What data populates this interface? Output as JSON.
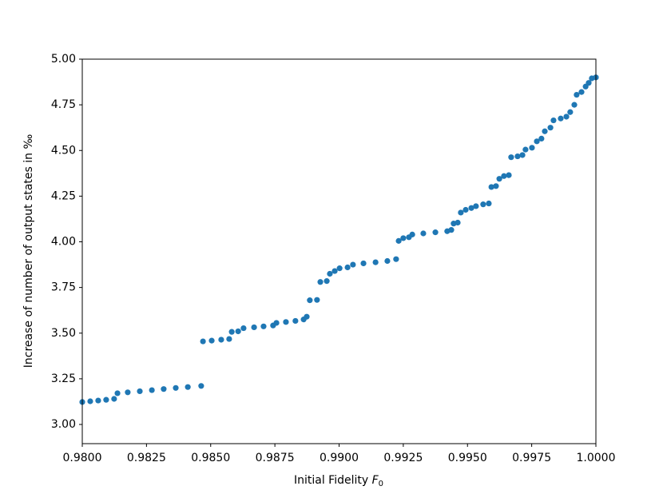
{
  "chart_data": {
    "type": "scatter",
    "xlabel": {
      "text": "Initial Fidelity",
      "symbol": "F",
      "subscript": "0"
    },
    "ylabel": "Increase of number of output states in ‰",
    "series": [
      {
        "color": "#1f77b4",
        "x": [
          0.98,
          0.98031,
          0.98062,
          0.98093,
          0.98124,
          0.98137,
          0.98177,
          0.98224,
          0.98271,
          0.98317,
          0.98364,
          0.98411,
          0.98463,
          0.9847,
          0.98504,
          0.98541,
          0.98572,
          0.98582,
          0.98607,
          0.98628,
          0.98669,
          0.98706,
          0.98743,
          0.98756,
          0.98793,
          0.9883,
          0.98862,
          0.98874,
          0.98886,
          0.98914,
          0.98927,
          0.98952,
          0.98964,
          0.98983,
          0.99002,
          0.99033,
          0.99054,
          0.99095,
          0.99142,
          0.99188,
          0.99222,
          0.99232,
          0.9925,
          0.99272,
          0.99285,
          0.99328,
          0.99375,
          0.99421,
          0.99437,
          0.99446,
          0.99462,
          0.99474,
          0.99493,
          0.99515,
          0.99533,
          0.99561,
          0.99583,
          0.99593,
          0.99611,
          0.99624,
          0.99642,
          0.99661,
          0.9967,
          0.99695,
          0.99714,
          0.99726,
          0.99751,
          0.9977,
          0.99788,
          0.99801,
          0.99823,
          0.99835,
          0.99863,
          0.99885,
          0.999,
          0.99916,
          0.99925,
          0.99944,
          0.9996,
          0.99972,
          0.99984,
          1.0
        ],
        "values": [
          3.123,
          3.127,
          3.131,
          3.135,
          3.14,
          3.171,
          3.176,
          3.182,
          3.188,
          3.194,
          3.2,
          3.205,
          3.211,
          3.455,
          3.459,
          3.464,
          3.468,
          3.507,
          3.51,
          3.527,
          3.532,
          3.537,
          3.542,
          3.556,
          3.561,
          3.567,
          3.575,
          3.59,
          3.68,
          3.682,
          3.78,
          3.785,
          3.825,
          3.84,
          3.855,
          3.86,
          3.875,
          3.882,
          3.888,
          3.895,
          3.905,
          4.005,
          4.02,
          4.025,
          4.04,
          4.046,
          4.052,
          4.058,
          4.065,
          4.1,
          4.105,
          4.16,
          4.175,
          4.185,
          4.195,
          4.205,
          4.21,
          4.3,
          4.305,
          4.345,
          4.36,
          4.365,
          4.463,
          4.468,
          4.475,
          4.505,
          4.515,
          4.55,
          4.565,
          4.605,
          4.625,
          4.665,
          4.675,
          4.685,
          4.71,
          4.75,
          4.805,
          4.82,
          4.85,
          4.87,
          4.895,
          4.9
        ]
      }
    ],
    "xlim": [
      0.98,
      1.0
    ],
    "xticks": [
      {
        "value": 0.98,
        "label": "0.9800"
      },
      {
        "value": 0.9825,
        "label": "0.9825"
      },
      {
        "value": 0.985,
        "label": "0.9850"
      },
      {
        "value": 0.9875,
        "label": "0.9875"
      },
      {
        "value": 0.99,
        "label": "0.9900"
      },
      {
        "value": 0.9925,
        "label": "0.9925"
      },
      {
        "value": 0.995,
        "label": "0.9950"
      },
      {
        "value": 0.9975,
        "label": "0.9975"
      },
      {
        "value": 1.0,
        "label": "1.0000"
      }
    ],
    "ylim": [
      2.895,
      5.0
    ],
    "yticks": [
      {
        "value": 3.0,
        "label": "3.00"
      },
      {
        "value": 3.25,
        "label": "3.25"
      },
      {
        "value": 3.5,
        "label": "3.50"
      },
      {
        "value": 3.75,
        "label": "3.75"
      },
      {
        "value": 4.0,
        "label": "4.00"
      },
      {
        "value": 4.25,
        "label": "4.25"
      },
      {
        "value": 4.5,
        "label": "4.50"
      },
      {
        "value": 4.75,
        "label": "4.75"
      },
      {
        "value": 5.0,
        "label": "5.00"
      }
    ],
    "grid": false
  }
}
